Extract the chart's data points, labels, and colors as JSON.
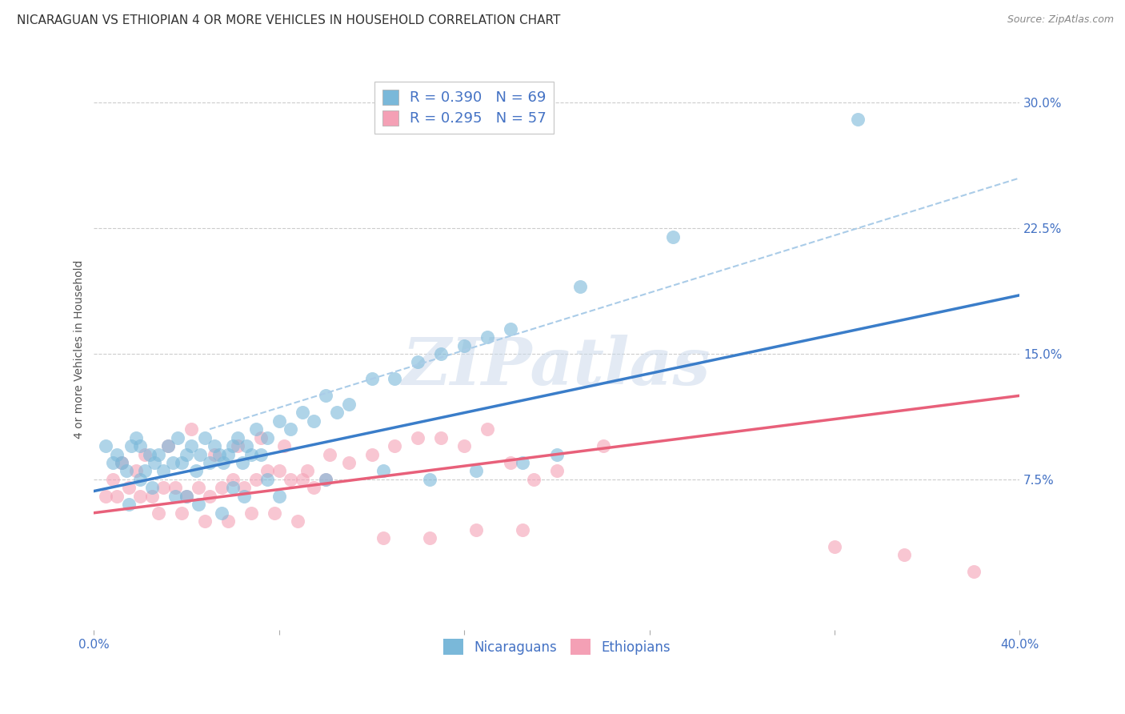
{
  "title": "NICARAGUAN VS ETHIOPIAN 4 OR MORE VEHICLES IN HOUSEHOLD CORRELATION CHART",
  "source": "Source: ZipAtlas.com",
  "ylabel": "4 or more Vehicles in Household",
  "xlim": [
    0.0,
    40.0
  ],
  "ylim": [
    -1.5,
    32.0
  ],
  "yticks": [
    7.5,
    15.0,
    22.5,
    30.0
  ],
  "xticks": [
    0.0,
    8.0,
    16.0,
    24.0,
    32.0,
    40.0
  ],
  "watermark_text": "ZIPatlas",
  "legend_nicaraguan_R": "R = 0.390",
  "legend_nicaraguan_N": "N = 69",
  "legend_ethiopian_R": "R = 0.295",
  "legend_ethiopian_N": "N = 57",
  "nicaraguan_color": "#7ab8d9",
  "ethiopian_color": "#f4a0b5",
  "nicaraguan_line_color": "#3a7dc9",
  "ethiopian_line_color": "#e8607a",
  "dashed_line_color": "#aacce8",
  "title_fontsize": 11,
  "source_fontsize": 9,
  "axis_label_fontsize": 10,
  "tick_fontsize": 11,
  "legend_fontsize": 12,
  "watermark_fontsize": 60,
  "nic_line_x": [
    0.0,
    40.0
  ],
  "nic_line_y": [
    6.8,
    18.5
  ],
  "eth_line_x": [
    0.0,
    40.0
  ],
  "eth_line_y": [
    5.5,
    12.5
  ],
  "dashed_line_x": [
    5.0,
    40.0
  ],
  "dashed_line_y": [
    10.5,
    25.5
  ],
  "background_color": "#ffffff",
  "grid_color": "#cccccc",
  "tick_color": "#4472c4",
  "ytick_labels": [
    "7.5%",
    "15.0%",
    "22.5%",
    "30.0%"
  ],
  "xtick_labels_left": "0.0%",
  "xtick_labels_right": "40.0%",
  "nicaraguan_scatter_x": [
    0.5,
    0.8,
    1.0,
    1.2,
    1.4,
    1.6,
    1.8,
    2.0,
    2.2,
    2.4,
    2.6,
    2.8,
    3.0,
    3.2,
    3.4,
    3.6,
    3.8,
    4.0,
    4.2,
    4.4,
    4.6,
    4.8,
    5.0,
    5.2,
    5.4,
    5.6,
    5.8,
    6.0,
    6.2,
    6.4,
    6.6,
    6.8,
    7.0,
    7.2,
    7.5,
    8.0,
    8.5,
    9.0,
    9.5,
    10.0,
    10.5,
    11.0,
    12.0,
    13.0,
    14.0,
    15.0,
    16.0,
    17.0,
    18.0,
    21.0,
    1.5,
    2.5,
    3.5,
    4.5,
    5.5,
    6.5,
    7.5,
    2.0,
    4.0,
    6.0,
    8.0,
    10.0,
    12.5,
    14.5,
    16.5,
    18.5,
    20.0,
    25.0,
    33.0
  ],
  "nicaraguan_scatter_y": [
    9.5,
    8.5,
    9.0,
    8.5,
    8.0,
    9.5,
    10.0,
    9.5,
    8.0,
    9.0,
    8.5,
    9.0,
    8.0,
    9.5,
    8.5,
    10.0,
    8.5,
    9.0,
    9.5,
    8.0,
    9.0,
    10.0,
    8.5,
    9.5,
    9.0,
    8.5,
    9.0,
    9.5,
    10.0,
    8.5,
    9.5,
    9.0,
    10.5,
    9.0,
    10.0,
    11.0,
    10.5,
    11.5,
    11.0,
    12.5,
    11.5,
    12.0,
    13.5,
    13.5,
    14.5,
    15.0,
    15.5,
    16.0,
    16.5,
    19.0,
    6.0,
    7.0,
    6.5,
    6.0,
    5.5,
    6.5,
    7.5,
    7.5,
    6.5,
    7.0,
    6.5,
    7.5,
    8.0,
    7.5,
    8.0,
    8.5,
    9.0,
    22.0,
    29.0
  ],
  "ethiopian_scatter_x": [
    0.5,
    1.0,
    1.5,
    2.0,
    2.5,
    3.0,
    3.5,
    4.0,
    4.5,
    5.0,
    5.5,
    6.0,
    6.5,
    7.0,
    7.5,
    8.0,
    8.5,
    9.0,
    9.5,
    10.0,
    11.0,
    12.0,
    13.0,
    14.0,
    15.0,
    16.0,
    17.0,
    18.0,
    19.0,
    20.0,
    1.2,
    2.2,
    3.2,
    4.2,
    5.2,
    6.2,
    7.2,
    8.2,
    9.2,
    10.2,
    0.8,
    1.8,
    2.8,
    3.8,
    4.8,
    5.8,
    6.8,
    7.8,
    8.8,
    12.5,
    14.5,
    16.5,
    18.5,
    22.0,
    32.0,
    35.0,
    38.0
  ],
  "ethiopian_scatter_y": [
    6.5,
    6.5,
    7.0,
    6.5,
    6.5,
    7.0,
    7.0,
    6.5,
    7.0,
    6.5,
    7.0,
    7.5,
    7.0,
    7.5,
    8.0,
    8.0,
    7.5,
    7.5,
    7.0,
    7.5,
    8.5,
    9.0,
    9.5,
    10.0,
    10.0,
    9.5,
    10.5,
    8.5,
    7.5,
    8.0,
    8.5,
    9.0,
    9.5,
    10.5,
    9.0,
    9.5,
    10.0,
    9.5,
    8.0,
    9.0,
    7.5,
    8.0,
    5.5,
    5.5,
    5.0,
    5.0,
    5.5,
    5.5,
    5.0,
    4.0,
    4.0,
    4.5,
    4.5,
    9.5,
    3.5,
    3.0,
    2.0
  ]
}
